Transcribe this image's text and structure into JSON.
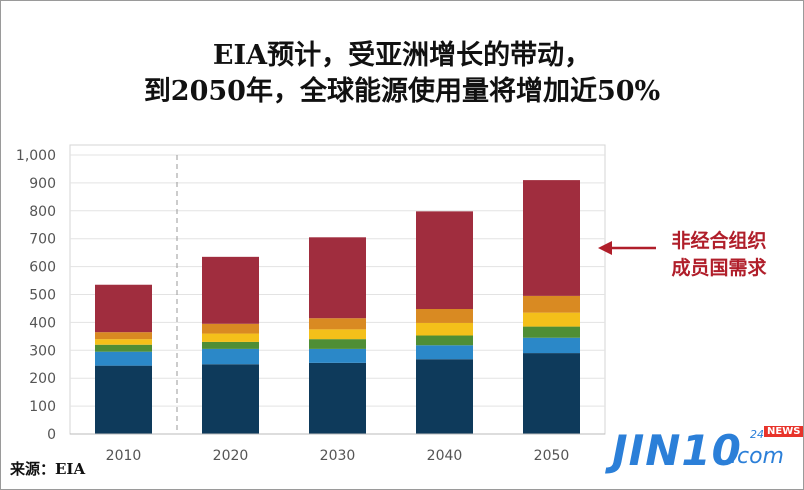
{
  "title_line1": "EIA预计，受亚洲增长的带动，",
  "title_line2": "到2050年，全球能源使用量将增加近50%",
  "annotation_line1": "非经合组织",
  "annotation_line2": "成员国需求",
  "source": "来源：EIA",
  "logo": {
    "main": "JIN10",
    "com": ".com",
    "num": "24",
    "news": "NEWS"
  },
  "colors": {
    "oecd": "#0e3a5b",
    "blue": "#2b88c8",
    "green": "#4f8e35",
    "yellow": "#f4c01a",
    "orange": "#d98a22",
    "non_oecd": "#a02d3e",
    "arrow": "#b01e2a",
    "grid": "#e3e3e3"
  },
  "chart_data": {
    "type": "bar",
    "stacked": true,
    "categories": [
      "2010",
      "2020",
      "2030",
      "2040",
      "2050"
    ],
    "ylim": [
      0,
      1000
    ],
    "yticks": [
      "0",
      "100",
      "200",
      "300",
      "400",
      "500",
      "600",
      "700",
      "800",
      "900",
      "1,000"
    ],
    "series": [
      {
        "color": "#0e3a5b",
        "values": [
          245,
          250,
          255,
          268,
          290
        ]
      },
      {
        "color": "#2b88c8",
        "values": [
          50,
          55,
          50,
          50,
          55
        ]
      },
      {
        "color": "#4f8e35",
        "values": [
          25,
          25,
          35,
          35,
          40
        ]
      },
      {
        "color": "#f4c01a",
        "values": [
          20,
          30,
          35,
          45,
          50
        ]
      },
      {
        "color": "#d98a22",
        "values": [
          25,
          35,
          40,
          50,
          60
        ]
      },
      {
        "name": "非经合组织成员国需求",
        "color": "#a02d3e",
        "values": [
          170,
          240,
          290,
          350,
          415
        ]
      }
    ],
    "grid": true,
    "divider_after_category": "2010"
  }
}
